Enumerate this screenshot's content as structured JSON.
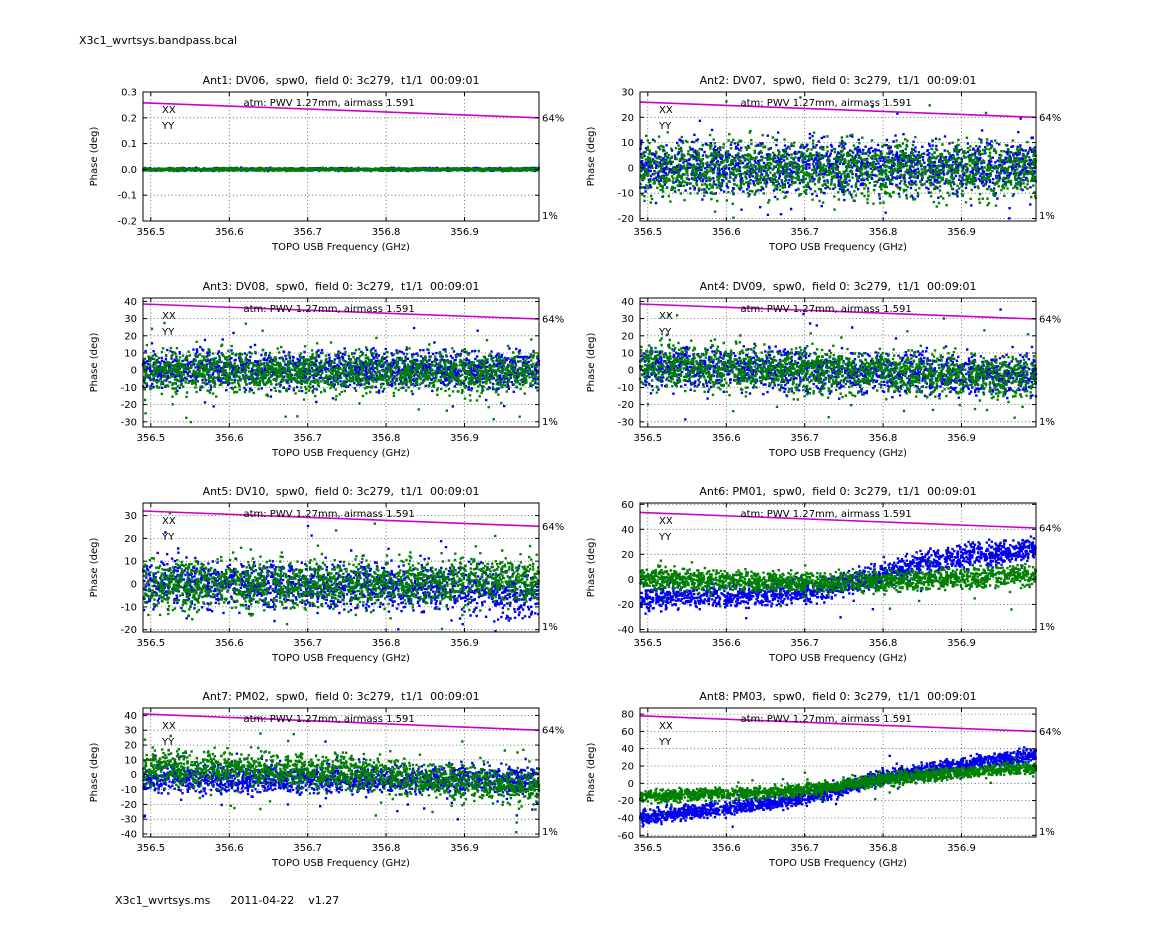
{
  "figure": {
    "title": "X3c1_wvrtsys.bandpass.bcal"
  },
  "footer": {
    "ms": "X3c1_wvrtsys.ms",
    "date": "2011-04-22",
    "version": "v1.27"
  },
  "colors": {
    "atm": "#cc00cc",
    "xx": "#0000ee",
    "yy": "#008000",
    "grid": "#333333",
    "frame": "#000000"
  },
  "chart_data": [
    {
      "type": "scatter",
      "title": "Ant1: DV06,  spw0,  field 0: 3c279,  t1/1  00:09:01",
      "xlabel": "TOPO USB Frequency (GHz)",
      "ylabel": "Phase (deg)",
      "xlim": [
        356.49,
        356.995
      ],
      "xticks": [
        356.5,
        356.6,
        356.7,
        356.8,
        356.9
      ],
      "xtick_labels": [
        "356.5",
        "356.6",
        "356.7",
        "356.8",
        "356.9"
      ],
      "ylim": [
        -0.2,
        0.3
      ],
      "yticks": [
        -0.2,
        -0.1,
        0,
        0.1,
        0.2,
        0.3
      ],
      "ytick_labels": [
        "-0.2",
        "-0.1",
        "0.0",
        "0.1",
        "0.2",
        "0.3"
      ],
      "grid": "dotted",
      "legend_position": "upper-left",
      "atm": {
        "label": "atm: PWV 1.27mm, airmass 1.591",
        "start": 0.258,
        "end": 0.2,
        "top_pct": "64%",
        "bottom_pct": "1%"
      },
      "series": [
        {
          "name": "XX",
          "color": "#0000ee",
          "trend": [
            [
              0,
              0
            ],
            [
              1,
              0
            ]
          ],
          "sigma": 0.0025,
          "n": 1200,
          "outlier_frac": 0.0
        },
        {
          "name": "YY",
          "color": "#008000",
          "trend": [
            [
              0,
              0
            ],
            [
              1,
              0
            ]
          ],
          "sigma": 0.0025,
          "n": 1200,
          "outlier_frac": 0.0
        }
      ]
    },
    {
      "type": "scatter",
      "title": "Ant2: DV07,  spw0,  field 0: 3c279,  t1/1  00:09:01",
      "xlabel": "TOPO USB Frequency (GHz)",
      "ylabel": "Phase (deg)",
      "xlim": [
        356.49,
        356.995
      ],
      "xticks": [
        356.5,
        356.6,
        356.7,
        356.8,
        356.9
      ],
      "xtick_labels": [
        "356.5",
        "356.6",
        "356.7",
        "356.8",
        "356.9"
      ],
      "ylim": [
        -21,
        30
      ],
      "yticks": [
        -20,
        -10,
        0,
        10,
        20,
        30
      ],
      "ytick_labels": [
        "-20",
        "-10",
        "0",
        "10",
        "20",
        "30"
      ],
      "grid": "dotted",
      "legend_position": "upper-left",
      "atm": {
        "label": "atm: PWV 1.27mm, airmass 1.591",
        "start": 26,
        "end": 20,
        "top_pct": "64%",
        "bottom_pct": "1%"
      },
      "series": [
        {
          "name": "XX",
          "color": "#0000ee",
          "trend": [
            [
              0,
              0.5
            ],
            [
              1,
              0.5
            ]
          ],
          "sigma": 5,
          "n": 1700,
          "outlier_frac": 0.04
        },
        {
          "name": "YY",
          "color": "#008000",
          "trend": [
            [
              0,
              -0.5
            ],
            [
              1,
              -0.5
            ]
          ],
          "sigma": 5.5,
          "n": 1700,
          "outlier_frac": 0.04
        }
      ]
    },
    {
      "type": "scatter",
      "title": "Ant3: DV08,  spw0,  field 0: 3c279,  t1/1  00:09:01",
      "xlabel": "TOPO USB Frequency (GHz)",
      "ylabel": "Phase (deg)",
      "xlim": [
        356.49,
        356.995
      ],
      "xticks": [
        356.5,
        356.6,
        356.7,
        356.8,
        356.9
      ],
      "xtick_labels": [
        "356.5",
        "356.6",
        "356.7",
        "356.8",
        "356.9"
      ],
      "ylim": [
        -33,
        42
      ],
      "yticks": [
        -30,
        -20,
        -10,
        0,
        10,
        20,
        30,
        40
      ],
      "ytick_labels": [
        "-30",
        "-20",
        "-10",
        "0",
        "10",
        "20",
        "30",
        "40"
      ],
      "grid": "dotted",
      "legend_position": "upper-left",
      "atm": {
        "label": "atm: PWV 1.27mm, airmass 1.591",
        "start": 38.5,
        "end": 29.8,
        "top_pct": "64%",
        "bottom_pct": "1%"
      },
      "series": [
        {
          "name": "XX",
          "color": "#0000ee",
          "trend": [
            [
              0,
              0
            ],
            [
              1,
              0
            ]
          ],
          "sigma": 5,
          "n": 1700,
          "outlier_frac": 0.04
        },
        {
          "name": "YY",
          "color": "#008000",
          "trend": [
            [
              0,
              -1
            ],
            [
              1,
              -1
            ]
          ],
          "sigma": 6,
          "n": 1700,
          "outlier_frac": 0.05
        }
      ]
    },
    {
      "type": "scatter",
      "title": "Ant4: DV09,  spw0,  field 0: 3c279,  t1/1  00:09:01",
      "xlabel": "TOPO USB Frequency (GHz)",
      "ylabel": "Phase (deg)",
      "xlim": [
        356.49,
        356.995
      ],
      "xticks": [
        356.5,
        356.6,
        356.7,
        356.8,
        356.9
      ],
      "xtick_labels": [
        "356.5",
        "356.6",
        "356.7",
        "356.8",
        "356.9"
      ],
      "ylim": [
        -33,
        42
      ],
      "yticks": [
        -30,
        -20,
        -10,
        0,
        10,
        20,
        30,
        40
      ],
      "ytick_labels": [
        "-30",
        "-20",
        "-10",
        "0",
        "10",
        "20",
        "30",
        "40"
      ],
      "grid": "dotted",
      "legend_position": "upper-left",
      "atm": {
        "label": "atm: PWV 1.27mm, airmass 1.591",
        "start": 38.5,
        "end": 29.8,
        "top_pct": "64%",
        "bottom_pct": "1%"
      },
      "series": [
        {
          "name": "XX",
          "color": "#0000ee",
          "trend": [
            [
              0,
              2
            ],
            [
              1,
              -3
            ]
          ],
          "sigma": 5.5,
          "n": 1700,
          "outlier_frac": 0.04
        },
        {
          "name": "YY",
          "color": "#008000",
          "trend": [
            [
              0,
              3
            ],
            [
              1,
              -4
            ]
          ],
          "sigma": 6,
          "n": 1700,
          "outlier_frac": 0.05
        }
      ]
    },
    {
      "type": "scatter",
      "title": "Ant5: DV10,  spw0,  field 0: 3c279,  t1/1  00:09:01",
      "xlabel": "TOPO USB Frequency (GHz)",
      "ylabel": "Phase (deg)",
      "xlim": [
        356.49,
        356.995
      ],
      "xticks": [
        356.5,
        356.6,
        356.7,
        356.8,
        356.9
      ],
      "xtick_labels": [
        "356.5",
        "356.6",
        "356.7",
        "356.8",
        "356.9"
      ],
      "ylim": [
        -21,
        35.5
      ],
      "yticks": [
        -20,
        -10,
        0,
        10,
        20,
        30
      ],
      "ytick_labels": [
        "-20",
        "-10",
        "0",
        "10",
        "20",
        "30"
      ],
      "grid": "dotted",
      "legend_position": "upper-left",
      "atm": {
        "label": "atm: PWV 1.27mm, airmass 1.591",
        "start": 32,
        "end": 25.3,
        "top_pct": "64%",
        "bottom_pct": "1%"
      },
      "series": [
        {
          "name": "XX",
          "color": "#0000ee",
          "trend": [
            [
              0,
              0
            ],
            [
              0.6,
              -1
            ],
            [
              1,
              -4
            ]
          ],
          "sigma": 5,
          "n": 1700,
          "outlier_frac": 0.04
        },
        {
          "name": "YY",
          "color": "#008000",
          "trend": [
            [
              0,
              -1
            ],
            [
              0.5,
              0
            ],
            [
              1,
              2
            ]
          ],
          "sigma": 5,
          "n": 1700,
          "outlier_frac": 0.04
        }
      ]
    },
    {
      "type": "scatter",
      "title": "Ant6: PM01,  spw0,  field 0: 3c279,  t1/1  00:09:01",
      "xlabel": "TOPO USB Frequency (GHz)",
      "ylabel": "Phase (deg)",
      "xlim": [
        356.49,
        356.995
      ],
      "xticks": [
        356.5,
        356.6,
        356.7,
        356.8,
        356.9
      ],
      "xtick_labels": [
        "356.5",
        "356.6",
        "356.7",
        "356.8",
        "356.9"
      ],
      "ylim": [
        -42,
        61
      ],
      "yticks": [
        -40,
        -20,
        0,
        20,
        40,
        60
      ],
      "ytick_labels": [
        "-40",
        "-20",
        "0",
        "20",
        "40",
        "60"
      ],
      "grid": "dotted",
      "legend_position": "upper-left",
      "atm": {
        "label": "atm: PWV 1.27mm, airmass 1.591",
        "start": 53.5,
        "end": 41,
        "top_pct": "64%",
        "bottom_pct": "1%"
      },
      "series": [
        {
          "name": "XX",
          "color": "#0000ee",
          "trend": [
            [
              0,
              -15
            ],
            [
              0.3,
              -12
            ],
            [
              0.45,
              -9
            ],
            [
              0.61,
              4
            ],
            [
              0.71,
              12
            ],
            [
              0.81,
              18
            ],
            [
              1,
              24
            ]
          ],
          "sigma": 4.5,
          "n": 1700,
          "outlier_frac": 0.03
        },
        {
          "name": "YY",
          "color": "#008000",
          "trend": [
            [
              0,
              1
            ],
            [
              0.45,
              -3
            ],
            [
              0.75,
              0
            ],
            [
              1,
              3
            ]
          ],
          "sigma": 4,
          "n": 1700,
          "outlier_frac": 0.03
        }
      ]
    },
    {
      "type": "scatter",
      "title": "Ant7: PM02,  spw0,  field 0: 3c279,  t1/1  00:09:01",
      "xlabel": "TOPO USB Frequency (GHz)",
      "ylabel": "Phase (deg)",
      "xlim": [
        356.49,
        356.995
      ],
      "xticks": [
        356.5,
        356.6,
        356.7,
        356.8,
        356.9
      ],
      "xtick_labels": [
        "356.5",
        "356.6",
        "356.7",
        "356.8",
        "356.9"
      ],
      "ylim": [
        -42,
        45
      ],
      "yticks": [
        -40,
        -30,
        -20,
        -10,
        0,
        10,
        20,
        30,
        40
      ],
      "ytick_labels": [
        "-40",
        "-30",
        "-20",
        "-10",
        "0",
        "10",
        "20",
        "30",
        "40"
      ],
      "grid": "dotted",
      "legend_position": "upper-left",
      "atm": {
        "label": "atm: PWV 1.27mm, airmass 1.591",
        "start": 41,
        "end": 30,
        "top_pct": "64%",
        "bottom_pct": "1%"
      },
      "series": [
        {
          "name": "XX",
          "color": "#0000ee",
          "trend": [
            [
              0,
              -3
            ],
            [
              1,
              -4
            ]
          ],
          "sigma": 4.5,
          "n": 1700,
          "outlier_frac": 0.05
        },
        {
          "name": "YY",
          "color": "#008000",
          "trend": [
            [
              0,
              5
            ],
            [
              0.5,
              2
            ],
            [
              1,
              -9
            ]
          ],
          "sigma": 5.5,
          "n": 1700,
          "outlier_frac": 0.06
        }
      ]
    },
    {
      "type": "scatter",
      "title": "Ant8: PM03,  spw0,  field 0: 3c279,  t1/1  00:09:01",
      "xlabel": "TOPO USB Frequency (GHz)",
      "ylabel": "Phase (deg)",
      "xlim": [
        356.49,
        356.995
      ],
      "xticks": [
        356.5,
        356.6,
        356.7,
        356.8,
        356.9
      ],
      "xtick_labels": [
        "356.5",
        "356.6",
        "356.7",
        "356.8",
        "356.9"
      ],
      "ylim": [
        -62,
        87
      ],
      "yticks": [
        -60,
        -40,
        -20,
        0,
        20,
        40,
        60,
        80
      ],
      "ytick_labels": [
        "-60",
        "-40",
        "-20",
        "0",
        "20",
        "40",
        "60",
        "80"
      ],
      "grid": "dotted",
      "legend_position": "upper-left",
      "atm": {
        "label": "atm: PWV 1.27mm, airmass 1.591",
        "start": 78,
        "end": 60,
        "top_pct": "64%",
        "bottom_pct": "1%"
      },
      "series": [
        {
          "name": "XX",
          "color": "#0000ee",
          "trend": [
            [
              0,
              -40
            ],
            [
              0.15,
              -32
            ],
            [
              0.3,
              -25
            ],
            [
              0.42,
              -16
            ],
            [
              0.5,
              -9
            ],
            [
              0.57,
              2
            ],
            [
              0.65,
              10
            ],
            [
              0.8,
              20
            ],
            [
              0.9,
              27
            ],
            [
              1,
              33
            ]
          ],
          "sigma": 4,
          "n": 1800,
          "outlier_frac": 0.03
        },
        {
          "name": "YY",
          "color": "#008000",
          "trend": [
            [
              0,
              -15
            ],
            [
              0.15,
              -13
            ],
            [
              0.3,
              -11
            ],
            [
              0.42,
              -7
            ],
            [
              0.5,
              -3
            ],
            [
              0.57,
              2
            ],
            [
              0.65,
              6
            ],
            [
              0.8,
              12
            ],
            [
              0.9,
              15
            ],
            [
              1,
              18
            ]
          ],
          "sigma": 3.5,
          "n": 1800,
          "outlier_frac": 0.03
        }
      ]
    }
  ]
}
